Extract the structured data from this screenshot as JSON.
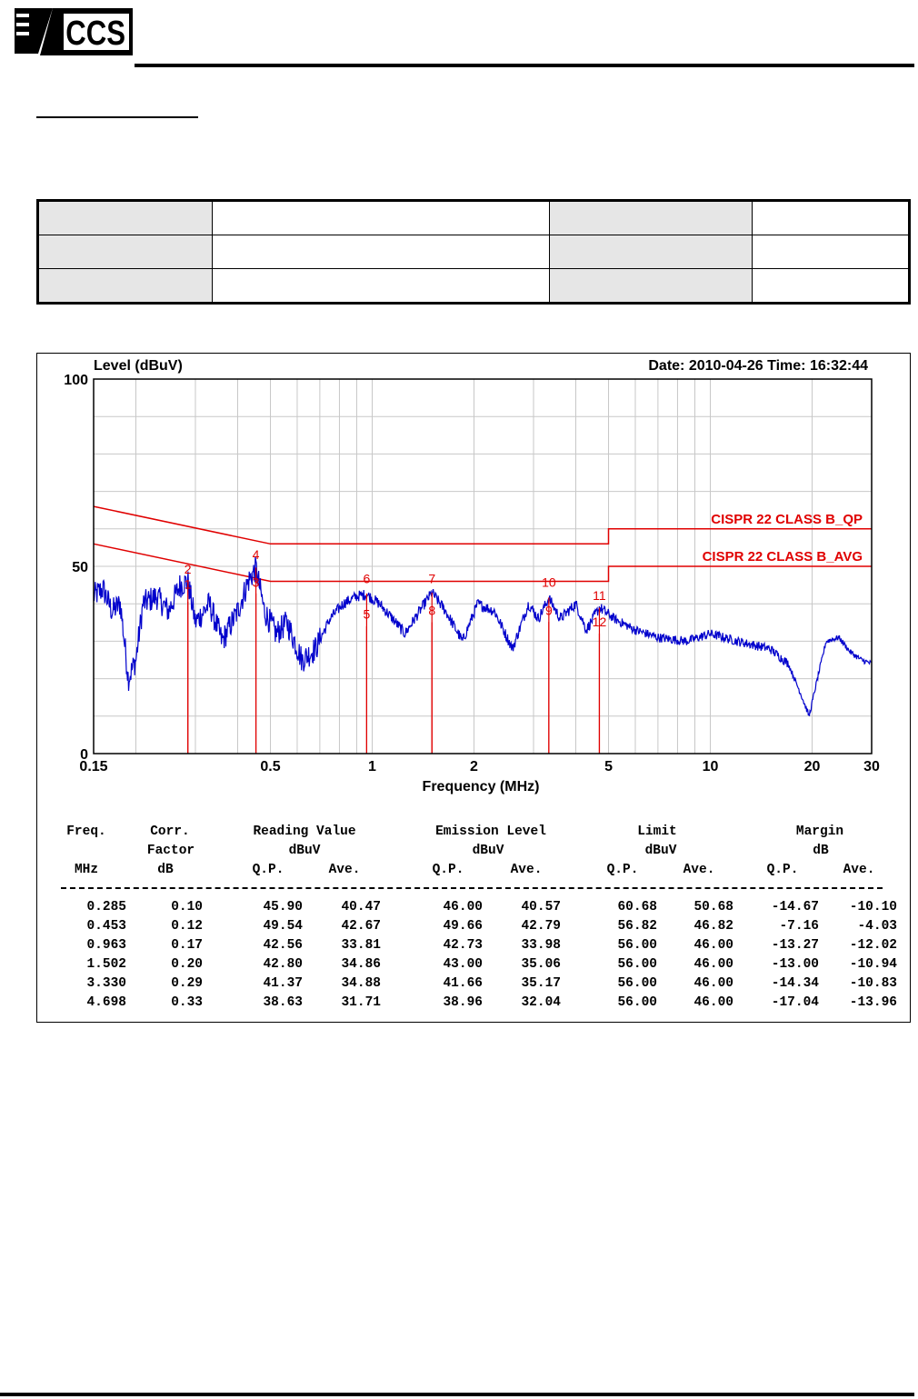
{
  "header": {
    "logo_text": "CCS"
  },
  "chart_data": {
    "type": "line",
    "ylabel": "Level (dBuV)",
    "xlabel": "Frequency (MHz)",
    "date_time": "Date: 2010-04-26  Time: 16:32:44",
    "xscale": "log",
    "xlim": [
      0.15,
      30
    ],
    "ylim": [
      0,
      100
    ],
    "x_ticks": [
      {
        "v": 0.15,
        "label": "0.15"
      },
      {
        "v": 0.5,
        "label": "0.5"
      },
      {
        "v": 1,
        "label": "1"
      },
      {
        "v": 2,
        "label": "2"
      },
      {
        "v": 5,
        "label": "5"
      },
      {
        "v": 10,
        "label": "10"
      },
      {
        "v": 20,
        "label": "20"
      },
      {
        "v": 30,
        "label": "30"
      }
    ],
    "y_ticks": [
      {
        "v": 0,
        "label": "0"
      },
      {
        "v": 50,
        "label": "50"
      },
      {
        "v": 100,
        "label": "100"
      }
    ],
    "grid": true,
    "colors": {
      "trace": "#0000cc",
      "limit": "#e00000",
      "grid": "#c8c8c8"
    },
    "limits": [
      {
        "name": "CISPR 22 CLASS B_QP",
        "points": [
          [
            0.15,
            66
          ],
          [
            0.5,
            56
          ],
          [
            5,
            56
          ],
          [
            5,
            60
          ],
          [
            30,
            60
          ]
        ]
      },
      {
        "name": "CISPR 22 CLASS B_AVG",
        "points": [
          [
            0.15,
            56
          ],
          [
            0.5,
            46
          ],
          [
            5,
            46
          ],
          [
            5,
            50
          ],
          [
            30,
            50
          ]
        ]
      }
    ],
    "trace": {
      "anchors": [
        [
          0.15,
          42
        ],
        [
          0.16,
          44
        ],
        [
          0.17,
          38
        ],
        [
          0.18,
          40
        ],
        [
          0.19,
          20
        ],
        [
          0.2,
          25
        ],
        [
          0.21,
          40
        ],
        [
          0.23,
          42
        ],
        [
          0.25,
          38
        ],
        [
          0.27,
          45
        ],
        [
          0.285,
          46
        ],
        [
          0.3,
          35
        ],
        [
          0.33,
          40
        ],
        [
          0.36,
          30
        ],
        [
          0.4,
          38
        ],
        [
          0.43,
          46
        ],
        [
          0.453,
          49.5
        ],
        [
          0.48,
          38
        ],
        [
          0.52,
          32
        ],
        [
          0.56,
          35
        ],
        [
          0.62,
          25
        ],
        [
          0.68,
          28
        ],
        [
          0.75,
          36
        ],
        [
          0.82,
          40
        ],
        [
          0.9,
          42
        ],
        [
          0.963,
          42.5
        ],
        [
          1.05,
          40
        ],
        [
          1.15,
          36
        ],
        [
          1.25,
          32
        ],
        [
          1.38,
          38
        ],
        [
          1.502,
          43
        ],
        [
          1.65,
          38
        ],
        [
          1.85,
          30
        ],
        [
          2.05,
          40
        ],
        [
          2.3,
          38
        ],
        [
          2.6,
          28
        ],
        [
          2.9,
          40
        ],
        [
          3.1,
          36
        ],
        [
          3.33,
          41.5
        ],
        [
          3.6,
          36
        ],
        [
          4.0,
          40
        ],
        [
          4.3,
          33
        ],
        [
          4.698,
          39
        ],
        [
          5.2,
          36
        ],
        [
          6.0,
          33
        ],
        [
          7.0,
          31
        ],
        [
          8.5,
          30
        ],
        [
          10.0,
          32
        ],
        [
          12.0,
          30
        ],
        [
          15.0,
          28
        ],
        [
          17.0,
          24
        ],
        [
          18.5,
          16
        ],
        [
          19.6,
          10
        ],
        [
          20.5,
          18
        ],
        [
          22.0,
          30
        ],
        [
          24.0,
          31
        ],
        [
          26.0,
          27
        ],
        [
          28.0,
          25
        ],
        [
          30.0,
          24
        ]
      ]
    },
    "markers": [
      {
        "id": "1",
        "freq": 0.285,
        "level": 40.57,
        "label_level": 44.0
      },
      {
        "id": "2",
        "freq": 0.285,
        "level": 46.0,
        "label_level": 48.0
      },
      {
        "id": "3",
        "freq": 0.453,
        "level": 42.79,
        "label_level": 44.5
      },
      {
        "id": "4",
        "freq": 0.453,
        "level": 49.66,
        "label_level": 52.0
      },
      {
        "id": "5",
        "freq": 0.963,
        "level": 33.98,
        "label_level": 36.0
      },
      {
        "id": "6",
        "freq": 0.963,
        "level": 42.73,
        "label_level": 45.5
      },
      {
        "id": "7",
        "freq": 1.502,
        "level": 43.0,
        "label_level": 45.5
      },
      {
        "id": "8",
        "freq": 1.502,
        "level": 35.06,
        "label_level": 37.0
      },
      {
        "id": "9",
        "freq": 3.33,
        "level": 35.17,
        "label_level": 37.0
      },
      {
        "id": "10",
        "freq": 3.33,
        "level": 41.66,
        "label_level": 44.5
      },
      {
        "id": "11",
        "freq": 4.698,
        "level": 38.96,
        "label_level": 41.0
      },
      {
        "id": "12",
        "freq": 4.698,
        "level": 32.04,
        "label_level": 34.0
      }
    ]
  },
  "table": {
    "headers": {
      "freq": "Freq.",
      "corr": "Corr.",
      "factor": "Factor",
      "reading": "Reading Value",
      "emission": "Emission Level",
      "limit": "Limit",
      "margin": "Margin",
      "unit_mhz": "MHz",
      "unit_db": "dB",
      "unit_dbuv_reading": "dBuV",
      "unit_dbuv_emission": "dBuV",
      "unit_dbuv_limit": "dBuV",
      "unit_db_margin": "dB",
      "qp": "Q.P.",
      "ave": "Ave."
    },
    "rows": [
      [
        "0.285",
        "0.10",
        "45.90",
        "40.47",
        "46.00",
        "40.57",
        "60.68",
        "50.68",
        "-14.67",
        "-10.10"
      ],
      [
        "0.453",
        "0.12",
        "49.54",
        "42.67",
        "49.66",
        "42.79",
        "56.82",
        "46.82",
        "-7.16",
        "-4.03"
      ],
      [
        "0.963",
        "0.17",
        "42.56",
        "33.81",
        "42.73",
        "33.98",
        "56.00",
        "46.00",
        "-13.27",
        "-12.02"
      ],
      [
        "1.502",
        "0.20",
        "42.80",
        "34.86",
        "43.00",
        "35.06",
        "56.00",
        "46.00",
        "-13.00",
        "-10.94"
      ],
      [
        "3.330",
        "0.29",
        "41.37",
        "34.88",
        "41.66",
        "35.17",
        "56.00",
        "46.00",
        "-14.34",
        "-10.83"
      ],
      [
        "4.698",
        "0.33",
        "38.63",
        "31.71",
        "38.96",
        "32.04",
        "56.00",
        "46.00",
        "-17.04",
        "-13.96"
      ]
    ]
  }
}
